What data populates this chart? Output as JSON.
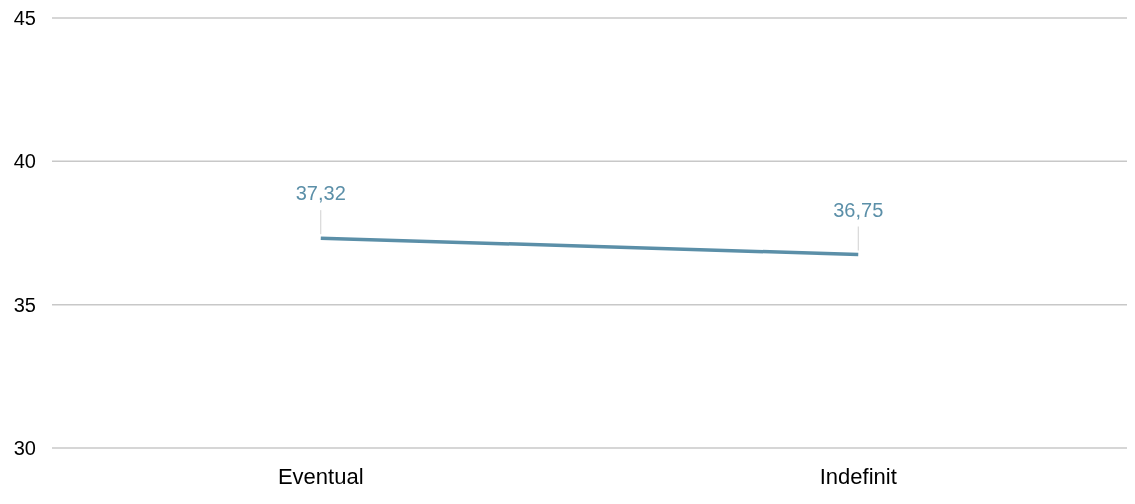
{
  "chart_data": {
    "type": "line",
    "categories": [
      "Eventual",
      "Indefinit"
    ],
    "series": [
      {
        "color": "#5b8fa8",
        "values": [
          37.32,
          36.75
        ],
        "value_labels": [
          "37,32",
          "36,75"
        ]
      }
    ],
    "ylim": [
      30,
      45
    ],
    "yticks": [
      30,
      35,
      40,
      45
    ],
    "grid": "y",
    "legend": false,
    "marker": "none"
  }
}
